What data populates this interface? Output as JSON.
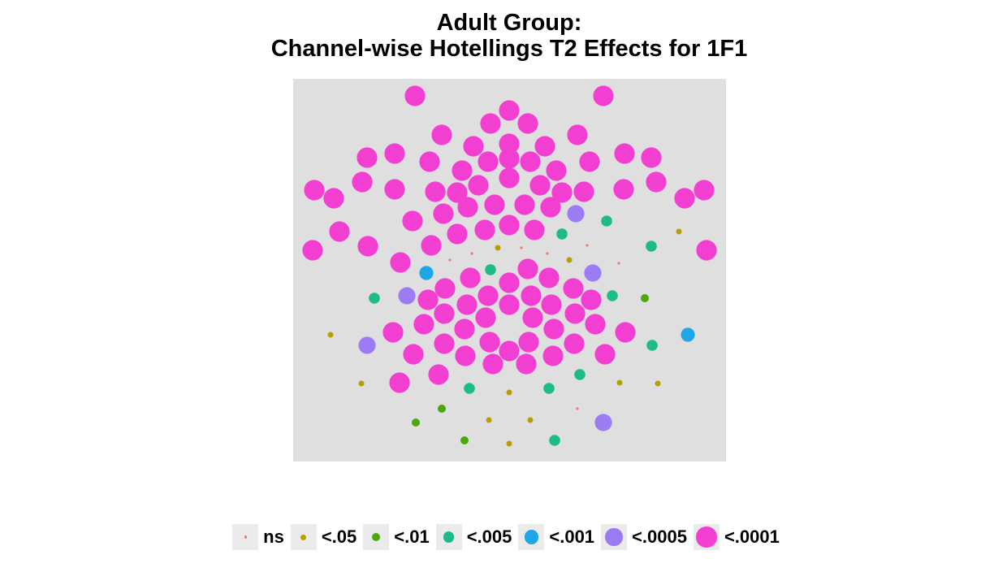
{
  "chart_data": {
    "type": "scatter",
    "title": "Adult Group:",
    "subtitle": "Channel-wise Hotellings T2 Effects for 1F1",
    "xlabel": "",
    "ylabel": "",
    "grid": false,
    "legend_position": "bottom",
    "categories": [
      "ns",
      "<.05",
      "<.01",
      "<.005",
      "<.001",
      "<.0005",
      "<.0001"
    ],
    "colors": {
      "ns": "#F8766D",
      "<.05": "#B79F00",
      "<.01": "#4AA808",
      "<.005": "#1EBB8A",
      "<.001": "#1EA6E6",
      "<.0005": "#9C7BF5",
      "<.0001": "#F33FD1"
    },
    "xlim": [
      361,
      894
    ],
    "ylim": [
      568,
      97
    ],
    "points": [
      [
        511,
        118,
        "<.0001"
      ],
      [
        743,
        118,
        "<.0001"
      ],
      [
        627,
        136,
        "<.0001"
      ],
      [
        604,
        152,
        "<.0001"
      ],
      [
        650,
        152,
        "<.0001"
      ],
      [
        544,
        166,
        "<.0001"
      ],
      [
        711,
        166,
        "<.0001"
      ],
      [
        627,
        177,
        "<.0001"
      ],
      [
        583,
        180,
        "<.0001"
      ],
      [
        671,
        180,
        "<.0001"
      ],
      [
        452,
        194,
        "<.0001"
      ],
      [
        486,
        189,
        "<.0001"
      ],
      [
        769,
        189,
        "<.0001"
      ],
      [
        802,
        194,
        "<.0001"
      ],
      [
        627,
        195,
        "<.0001"
      ],
      [
        601,
        199,
        "<.0001"
      ],
      [
        653,
        199,
        "<.0001"
      ],
      [
        529,
        199,
        "<.0001"
      ],
      [
        726,
        199,
        "<.0001"
      ],
      [
        569,
        210,
        "<.0001"
      ],
      [
        685,
        210,
        "<.0001"
      ],
      [
        627,
        219,
        "<.0001"
      ],
      [
        446,
        224,
        "<.0001"
      ],
      [
        808,
        224,
        "<.0001"
      ],
      [
        589,
        228,
        "<.0001"
      ],
      [
        665,
        228,
        "<.0001"
      ],
      [
        387,
        234,
        "<.0001"
      ],
      [
        486,
        233,
        "<.0001"
      ],
      [
        536,
        236,
        "<.0001"
      ],
      [
        563,
        237,
        "<.0001"
      ],
      [
        692,
        237,
        "<.0001"
      ],
      [
        719,
        236,
        "<.0001"
      ],
      [
        768,
        233,
        "<.0001"
      ],
      [
        867,
        234,
        "<.0001"
      ],
      [
        411,
        244,
        "<.0001"
      ],
      [
        843,
        244,
        "<.0001"
      ],
      [
        609,
        252,
        "<.0001"
      ],
      [
        646,
        252,
        "<.0001"
      ],
      [
        576,
        255,
        "<.0001"
      ],
      [
        678,
        255,
        "<.0001"
      ],
      [
        546,
        263,
        "<.0001"
      ],
      [
        709,
        263,
        "<.0005"
      ],
      [
        508,
        272,
        "<.0001"
      ],
      [
        747,
        272,
        "<.005"
      ],
      [
        627,
        277,
        "<.0001"
      ],
      [
        597,
        283,
        "<.0001"
      ],
      [
        658,
        283,
        "<.0001"
      ],
      [
        418,
        285,
        "<.0001"
      ],
      [
        563,
        288,
        "<.0001"
      ],
      [
        692,
        288,
        "<.005"
      ],
      [
        836,
        285,
        "<.05"
      ],
      [
        531,
        302,
        "<.0001"
      ],
      [
        453,
        303,
        "<.0001"
      ],
      [
        802,
        303,
        "<.005"
      ],
      [
        385,
        308,
        "<.0001"
      ],
      [
        870,
        308,
        "<.0001"
      ],
      [
        613,
        305,
        "<.05"
      ],
      [
        642,
        305,
        "ns"
      ],
      [
        723,
        302,
        "ns"
      ],
      [
        554,
        320,
        "ns"
      ],
      [
        581,
        312,
        "ns"
      ],
      [
        674,
        312,
        "ns"
      ],
      [
        701,
        320,
        "<.05"
      ],
      [
        762,
        324,
        "ns"
      ],
      [
        493,
        323,
        "<.0001"
      ],
      [
        525,
        336,
        "<.001"
      ],
      [
        604,
        332,
        "<.005"
      ],
      [
        730,
        336,
        "<.0005"
      ],
      [
        650,
        331,
        "<.0001"
      ],
      [
        579,
        342,
        "<.0001"
      ],
      [
        676,
        342,
        "<.0001"
      ],
      [
        627,
        348,
        "<.0001"
      ],
      [
        548,
        355,
        "<.0001"
      ],
      [
        706,
        355,
        "<.0001"
      ],
      [
        461,
        367,
        "<.005"
      ],
      [
        501,
        364,
        "<.0005"
      ],
      [
        754,
        364,
        "<.005"
      ],
      [
        794,
        367,
        "<.01"
      ],
      [
        601,
        364,
        "<.0001"
      ],
      [
        654,
        364,
        "<.0001"
      ],
      [
        527,
        369,
        "<.0001"
      ],
      [
        728,
        369,
        "<.0001"
      ],
      [
        575,
        375,
        "<.0001"
      ],
      [
        679,
        375,
        "<.0001"
      ],
      [
        627,
        375,
        "<.0001"
      ],
      [
        547,
        386,
        "<.0001"
      ],
      [
        708,
        386,
        "<.0001"
      ],
      [
        598,
        391,
        "<.0001"
      ],
      [
        656,
        391,
        "<.0001"
      ],
      [
        522,
        399,
        "<.0001"
      ],
      [
        733,
        399,
        "<.0001"
      ],
      [
        572,
        405,
        "<.0001"
      ],
      [
        682,
        405,
        "<.0001"
      ],
      [
        407,
        412,
        "<.05"
      ],
      [
        484,
        409,
        "<.0001"
      ],
      [
        770,
        409,
        "<.0001"
      ],
      [
        847,
        412,
        "<.001"
      ],
      [
        603,
        421,
        "<.0001"
      ],
      [
        651,
        421,
        "<.0001"
      ],
      [
        547,
        423,
        "<.0001"
      ],
      [
        707,
        423,
        "<.0001"
      ],
      [
        452,
        425,
        "<.0005"
      ],
      [
        803,
        425,
        "<.005"
      ],
      [
        627,
        432,
        "<.0001"
      ],
      [
        509,
        436,
        "<.0001"
      ],
      [
        573,
        438,
        "<.0001"
      ],
      [
        681,
        438,
        "<.0001"
      ],
      [
        745,
        436,
        "<.0001"
      ],
      [
        607,
        448,
        "<.0001"
      ],
      [
        648,
        448,
        "<.0001"
      ],
      [
        540,
        461,
        "<.0001"
      ],
      [
        714,
        461,
        "<.005"
      ],
      [
        492,
        471,
        "<.0001"
      ],
      [
        445,
        472,
        "<.05"
      ],
      [
        763,
        471,
        "<.05"
      ],
      [
        810,
        472,
        "<.05"
      ],
      [
        578,
        478,
        "<.005"
      ],
      [
        676,
        478,
        "<.005"
      ],
      [
        627,
        483,
        "<.05"
      ],
      [
        544,
        503,
        "<.01"
      ],
      [
        711,
        503,
        "ns"
      ],
      [
        512,
        520,
        "<.01"
      ],
      [
        602,
        517,
        "<.05"
      ],
      [
        653,
        517,
        "<.05"
      ],
      [
        743,
        520,
        "<.0005"
      ],
      [
        572,
        542,
        "<.01"
      ],
      [
        627,
        546,
        "<.05"
      ],
      [
        683,
        542,
        "<.005"
      ]
    ]
  }
}
